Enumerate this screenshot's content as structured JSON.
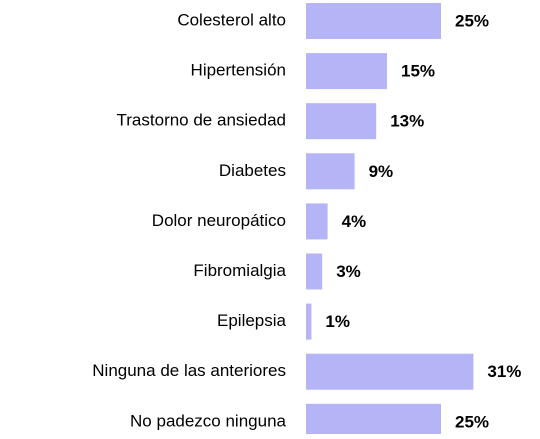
{
  "chart_data": {
    "type": "bar",
    "orientation": "horizontal",
    "categories": [
      "Colesterol alto",
      "Hipertensión",
      "Trastorno de ansiedad",
      "Diabetes",
      "Dolor neuropático",
      "Fibromialgia",
      "Epilepsia",
      "Ninguna de las anteriores",
      "No padezco ninguna"
    ],
    "values": [
      25,
      15,
      13,
      9,
      4,
      3,
      1,
      31,
      25
    ],
    "value_labels": [
      "25%",
      "15%",
      "13%",
      "9%",
      "4%",
      "3%",
      "1%",
      "31%",
      "25%"
    ],
    "color": "#b4b4f7"
  }
}
